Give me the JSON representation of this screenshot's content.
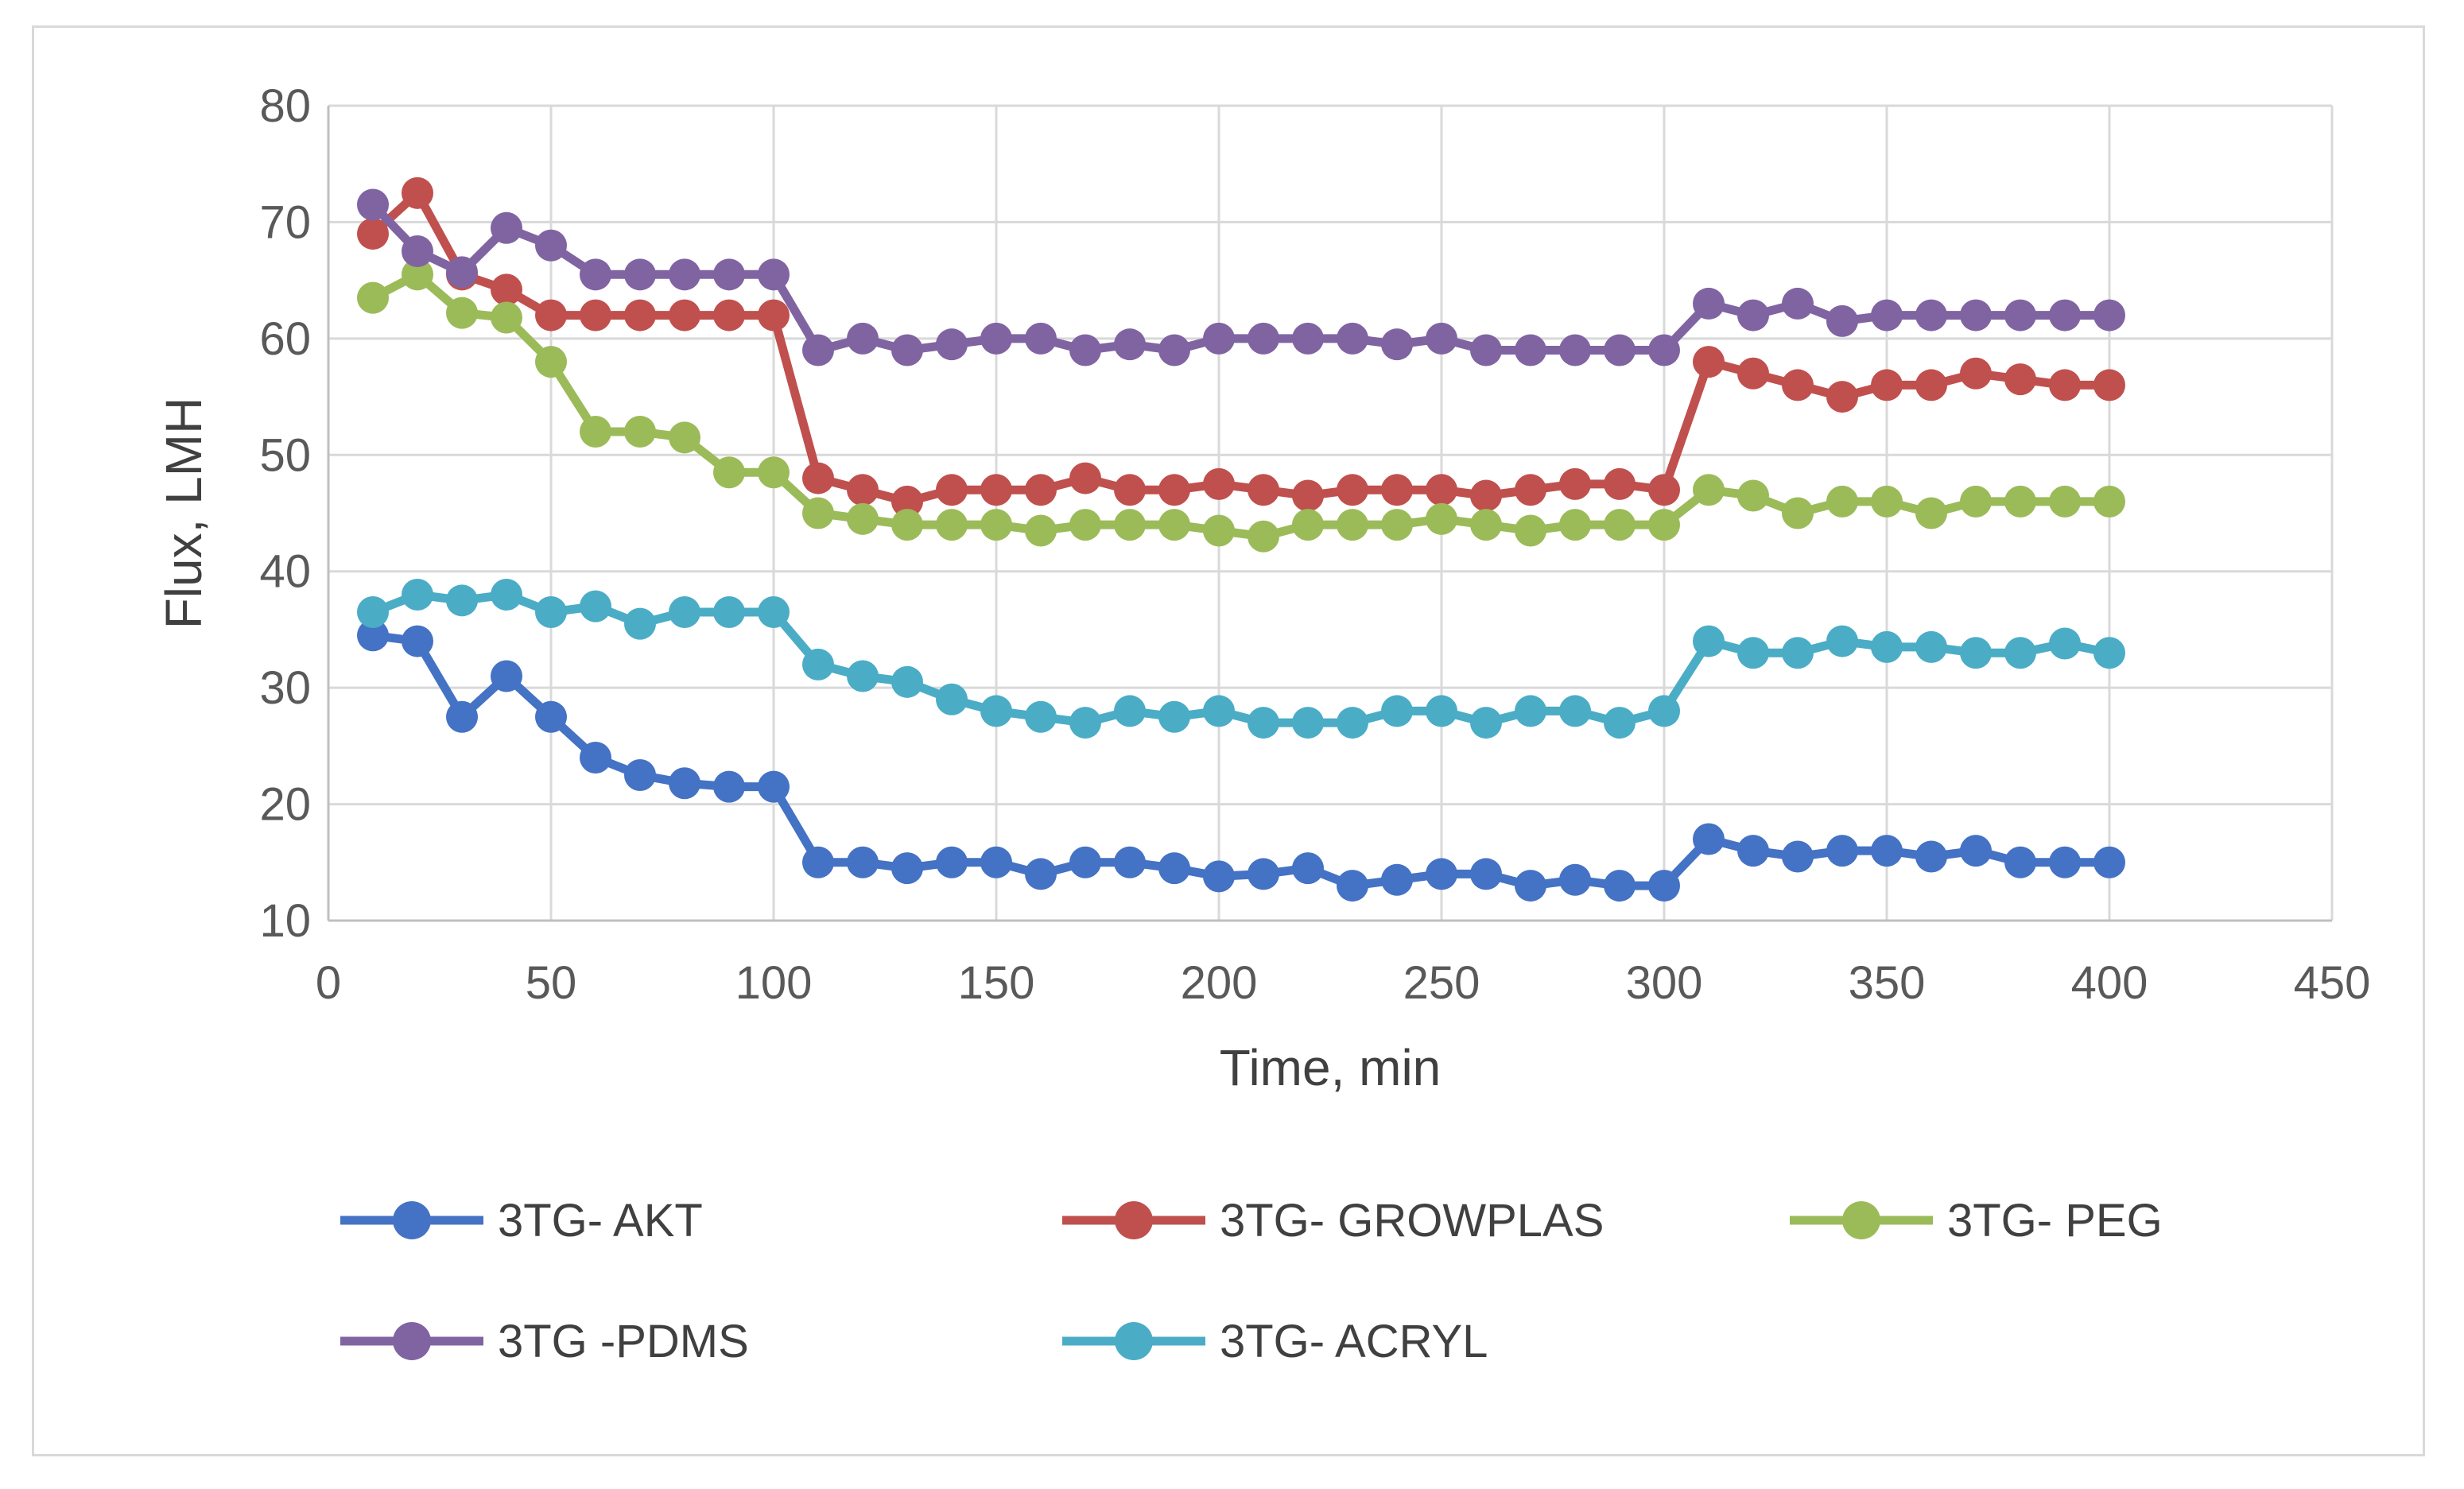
{
  "chart_data": {
    "type": "line",
    "title": "",
    "xlabel": "Time, min",
    "ylabel": "Flux, LMH",
    "xlim": [
      0,
      450
    ],
    "ylim": [
      10,
      80
    ],
    "xticks": [
      0,
      50,
      100,
      150,
      200,
      250,
      300,
      350,
      400,
      450
    ],
    "yticks": [
      10,
      20,
      30,
      40,
      50,
      60,
      70,
      80
    ],
    "grid": true,
    "legend_position": "bottom",
    "x": [
      10,
      20,
      30,
      40,
      50,
      60,
      70,
      80,
      90,
      100,
      110,
      120,
      130,
      140,
      150,
      160,
      170,
      180,
      190,
      200,
      210,
      220,
      230,
      240,
      250,
      260,
      270,
      280,
      290,
      300,
      310,
      320,
      330,
      340,
      350,
      360,
      370,
      380,
      390,
      400
    ],
    "series": [
      {
        "name": "3TG- AKT",
        "color": "#4472c4",
        "values": [
          34.5,
          34,
          27.5,
          31,
          27.5,
          24,
          22.5,
          21.8,
          21.5,
          21.5,
          15,
          15,
          14.5,
          15,
          15,
          14,
          15,
          15,
          14.5,
          13.8,
          14,
          14.5,
          13,
          13.5,
          14,
          14,
          13,
          13.5,
          13,
          13,
          17,
          16,
          15.5,
          16,
          16,
          15.5,
          16,
          15,
          15,
          15
        ]
      },
      {
        "name": "3TG- GROWPLAS",
        "color": "#c0504d",
        "values": [
          69,
          72.5,
          65.5,
          64.2,
          62,
          62,
          62,
          62,
          62,
          62,
          48,
          47,
          46,
          47,
          47,
          47,
          48,
          47,
          47,
          47.5,
          47,
          46.5,
          47,
          47,
          47,
          46.5,
          47,
          47.5,
          47.5,
          47,
          58,
          57,
          56,
          55,
          56,
          56,
          57,
          56.5,
          56,
          56
        ]
      },
      {
        "name": "3TG- PEG",
        "color": "#9bbb59",
        "values": [
          63.5,
          65.5,
          62.2,
          61.8,
          58,
          52,
          52,
          51.5,
          48.5,
          48.5,
          45,
          44.5,
          44,
          44,
          44,
          43.5,
          44,
          44,
          44,
          43.5,
          43,
          44,
          44,
          44,
          44.5,
          44,
          43.5,
          44,
          44,
          44,
          47,
          46.5,
          45,
          46,
          46,
          45,
          46,
          46,
          46,
          46
        ]
      },
      {
        "name": "3TG -PDMS",
        "color": "#8064a2",
        "values": [
          71.5,
          67.5,
          65.7,
          69.5,
          68,
          65.5,
          65.5,
          65.5,
          65.5,
          65.5,
          59,
          60,
          59,
          59.5,
          60,
          60,
          59,
          59.5,
          59,
          60,
          60,
          60,
          60,
          59.5,
          60,
          59,
          59,
          59,
          59,
          59,
          63,
          62,
          63,
          61.5,
          62,
          62,
          62,
          62,
          62,
          62
        ]
      },
      {
        "name": "3TG- ACRYL",
        "color": "#4bacc6",
        "values": [
          36.5,
          38,
          37.5,
          38,
          36.5,
          37,
          35.5,
          36.5,
          36.5,
          36.5,
          32,
          31,
          30.5,
          29,
          28,
          27.5,
          27,
          28,
          27.5,
          28,
          27,
          27,
          27,
          28,
          28,
          27,
          28,
          28,
          27,
          28,
          34,
          33,
          33,
          34,
          33.5,
          33.5,
          33,
          33,
          33.8,
          33
        ]
      }
    ]
  }
}
